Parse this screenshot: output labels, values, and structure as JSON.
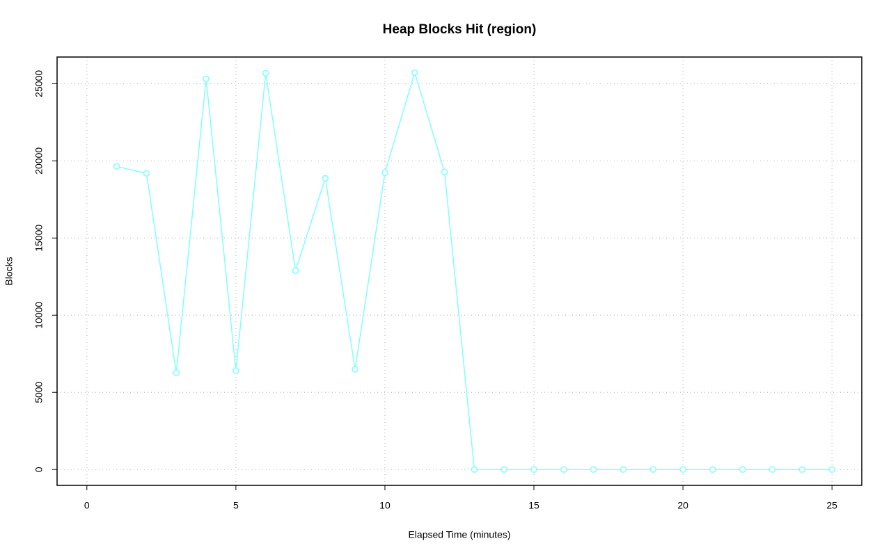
{
  "chart_data": {
    "type": "line",
    "title": "Heap Blocks Hit (region)",
    "x_label": "Elapsed Time (minutes)",
    "y_label": "Blocks",
    "x": [
      1,
      2,
      3,
      4,
      5,
      6,
      7,
      8,
      9,
      10,
      11,
      12,
      13,
      14,
      15,
      16,
      17,
      18,
      19,
      20,
      21,
      22,
      23,
      24,
      25
    ],
    "series": [
      {
        "color": "#80ffff",
        "values": [
          19640,
          19190,
          6260,
          25315,
          6400,
          25680,
          12880,
          18870,
          6490,
          19230,
          25720,
          19280,
          0,
          0,
          0,
          0,
          0,
          0,
          0,
          0,
          0,
          0,
          0,
          0,
          0
        ]
      }
    ],
    "xlim": [
      -1,
      26
    ],
    "xticks": [
      0,
      5,
      10,
      15,
      20,
      25
    ],
    "ylim": [
      -1028,
      26728
    ],
    "yticks": [
      0,
      5000,
      10000,
      15000,
      20000,
      25000
    ],
    "grid": true
  }
}
